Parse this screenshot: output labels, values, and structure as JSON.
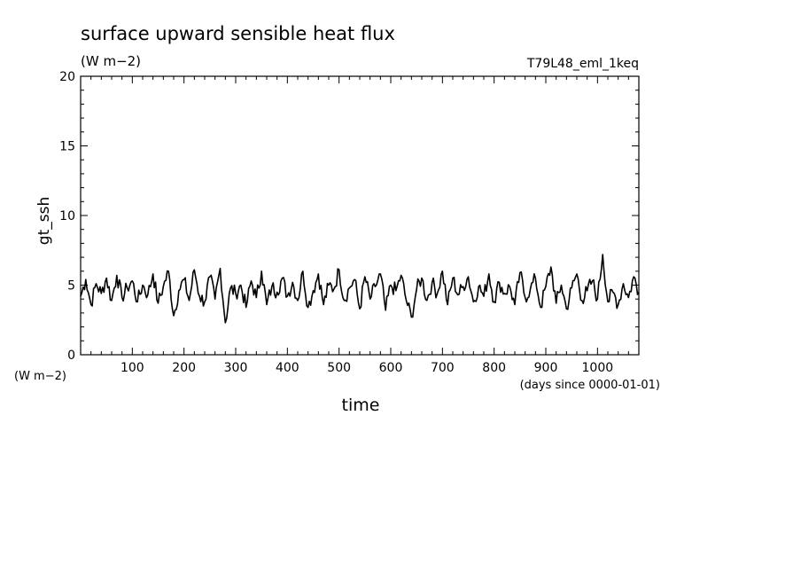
{
  "header": {
    "title": "surface upward sensible heat flux",
    "units": "(W m−2)",
    "run_name": "T79L48_eml_1keq"
  },
  "chart_data": {
    "type": "line",
    "title": "surface upward sensible heat flux",
    "xlabel": "time",
    "xunits": "(days since 0000-01-01)",
    "ylabel": "gt_ssh",
    "yunits": "(W m−2)",
    "xlim": [
      0,
      1080
    ],
    "ylim": [
      0,
      20
    ],
    "xticks": [
      100,
      200,
      300,
      400,
      500,
      600,
      700,
      800,
      900,
      1000
    ],
    "yticks": [
      0,
      5,
      10,
      15,
      20
    ],
    "grid": false,
    "series": [
      {
        "x": [
          0,
          10,
          20,
          30,
          40,
          50,
          60,
          70,
          80,
          90,
          100,
          110,
          120,
          130,
          140,
          150,
          160,
          170,
          180,
          190,
          200,
          210,
          220,
          230,
          240,
          250,
          260,
          270,
          280,
          290,
          300,
          310,
          320,
          330,
          340,
          350,
          360,
          370,
          380,
          390,
          400,
          410,
          420,
          430,
          440,
          450,
          460,
          470,
          480,
          490,
          500,
          510,
          520,
          530,
          540,
          550,
          560,
          570,
          580,
          590,
          600,
          610,
          620,
          630,
          640,
          650,
          660,
          670,
          680,
          690,
          700,
          710,
          720,
          730,
          740,
          750,
          760,
          770,
          780,
          790,
          800,
          810,
          820,
          830,
          840,
          850,
          860,
          870,
          880,
          890,
          900,
          910,
          920,
          930,
          940,
          950,
          960,
          970,
          980,
          990,
          1000,
          1010,
          1020,
          1030,
          1040,
          1050,
          1060,
          1070,
          1080
        ],
        "y": [
          4.2,
          5.4,
          3.6,
          5.1,
          4.4,
          5.5,
          3.9,
          5.7,
          4.1,
          4.8,
          5.3,
          3.8,
          5.0,
          4.3,
          5.8,
          3.7,
          4.9,
          6.0,
          2.8,
          4.6,
          5.4,
          3.9,
          6.1,
          4.2,
          3.8,
          5.6,
          4.0,
          6.2,
          2.3,
          4.8,
          4.4,
          5.0,
          3.4,
          5.3,
          4.1,
          6.0,
          3.6,
          4.9,
          4.5,
          5.5,
          4.2,
          5.2,
          3.9,
          6.0,
          3.4,
          4.6,
          5.8,
          3.6,
          5.0,
          4.7,
          6.1,
          3.9,
          4.8,
          5.4,
          3.3,
          5.6,
          4.0,
          4.9,
          5.8,
          3.2,
          5.0,
          4.6,
          5.7,
          3.9,
          2.7,
          4.7,
          5.5,
          3.9,
          5.2,
          4.4,
          6.0,
          3.6,
          5.5,
          4.3,
          4.9,
          5.6,
          3.8,
          4.9,
          4.2,
          5.8,
          3.8,
          5.2,
          4.4,
          4.9,
          3.6,
          5.9,
          4.1,
          4.7,
          5.5,
          3.4,
          4.9,
          6.3,
          3.7,
          5.0,
          3.3,
          4.8,
          5.8,
          3.9,
          4.6,
          5.3,
          4.0,
          7.2,
          3.8,
          4.5,
          3.6,
          5.1,
          4.1,
          5.6,
          4.5
        ]
      }
    ]
  }
}
